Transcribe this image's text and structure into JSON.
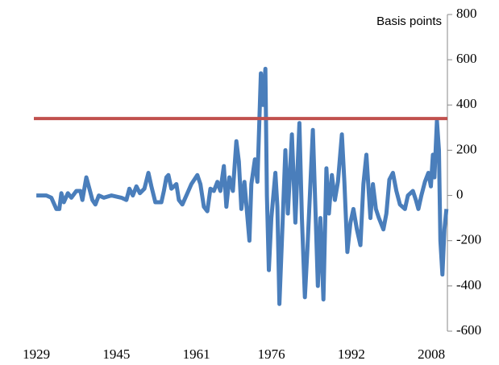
{
  "chart_data": {
    "type": "line",
    "y_label": "Basis points",
    "y_axis_side": "right",
    "grid": false,
    "xlim": [
      1928.5,
      2011.2
    ],
    "xticks": [
      1929,
      1945,
      1961,
      1976,
      1992,
      2008
    ],
    "ylim": [
      -600,
      800
    ],
    "yticks": [
      -600,
      -400,
      -200,
      0,
      200,
      400,
      600,
      800
    ],
    "hline": {
      "value": 340,
      "color": "#c0504d"
    },
    "x": [
      1929,
      1931,
      1932,
      1933,
      1933.6,
      1934,
      1934.5,
      1935.3,
      1936,
      1937,
      1937.8,
      1938.2,
      1939,
      1939.6,
      1940.2,
      1940.8,
      1941.5,
      1942.5,
      1944,
      1946,
      1947,
      1947.6,
      1948.3,
      1949,
      1949.7,
      1950.6,
      1951.4,
      1952,
      1952.8,
      1954,
      1954.5,
      1955,
      1955.4,
      1956,
      1957,
      1957.5,
      1958.2,
      1959,
      1960,
      1961.2,
      1961.8,
      1962.5,
      1963.2,
      1963.8,
      1964.5,
      1965.2,
      1965.8,
      1966.5,
      1967,
      1967.6,
      1968.3,
      1969,
      1969.5,
      1970,
      1970.6,
      1971.6,
      1972,
      1972.7,
      1973.2,
      1973.9,
      1974.3,
      1974.8,
      1975.1,
      1975.5,
      1976,
      1976.8,
      1977.2,
      1977.6,
      1978.1,
      1978.8,
      1979.3,
      1980.1,
      1980.8,
      1981.6,
      1982.1,
      1982.7,
      1983.2,
      1983.7,
      1984.3,
      1984.8,
      1985.3,
      1985.8,
      1986.4,
      1987,
      1987.5,
      1988.1,
      1988.7,
      1989.3,
      1990.1,
      1990.6,
      1991.2,
      1991.8,
      1992.4,
      1993.1,
      1993.8,
      1994.4,
      1995,
      1995.8,
      1996.3,
      1996.9,
      1997.5,
      1998.4,
      1999,
      1999.6,
      2000.3,
      2001,
      2001.7,
      2002.7,
      2003.3,
      2004.3,
      2004.9,
      2005.4,
      2006,
      2006.7,
      2007.4,
      2007.9,
      2008.3,
      2008.6,
      2009.1,
      2009.5,
      2009.8,
      2010.2,
      2010.6,
      2011
    ],
    "series": [
      {
        "color": "#4a7ebb",
        "values": [
          0,
          0,
          -10,
          -60,
          -60,
          10,
          -30,
          10,
          -10,
          20,
          20,
          -20,
          80,
          30,
          -20,
          -40,
          0,
          -10,
          0,
          -10,
          -20,
          30,
          0,
          40,
          10,
          30,
          100,
          40,
          -30,
          -30,
          20,
          80,
          90,
          30,
          50,
          -20,
          -40,
          0,
          50,
          90,
          50,
          -50,
          -70,
          30,
          20,
          60,
          20,
          130,
          -50,
          80,
          20,
          240,
          150,
          -60,
          60,
          -200,
          50,
          160,
          60,
          540,
          400,
          560,
          0,
          -330,
          -100,
          100,
          -50,
          -480,
          -200,
          200,
          -80,
          270,
          -120,
          320,
          -100,
          -450,
          -240,
          0,
          290,
          -50,
          -400,
          -100,
          -460,
          120,
          -80,
          90,
          -20,
          60,
          270,
          60,
          -250,
          -120,
          -60,
          -150,
          -220,
          50,
          180,
          -100,
          50,
          -60,
          -100,
          -150,
          -80,
          70,
          100,
          20,
          -40,
          -60,
          0,
          20,
          -20,
          -60,
          0,
          60,
          100,
          40,
          180,
          80,
          330,
          200,
          -200,
          -350,
          -150,
          -60
        ]
      }
    ]
  }
}
